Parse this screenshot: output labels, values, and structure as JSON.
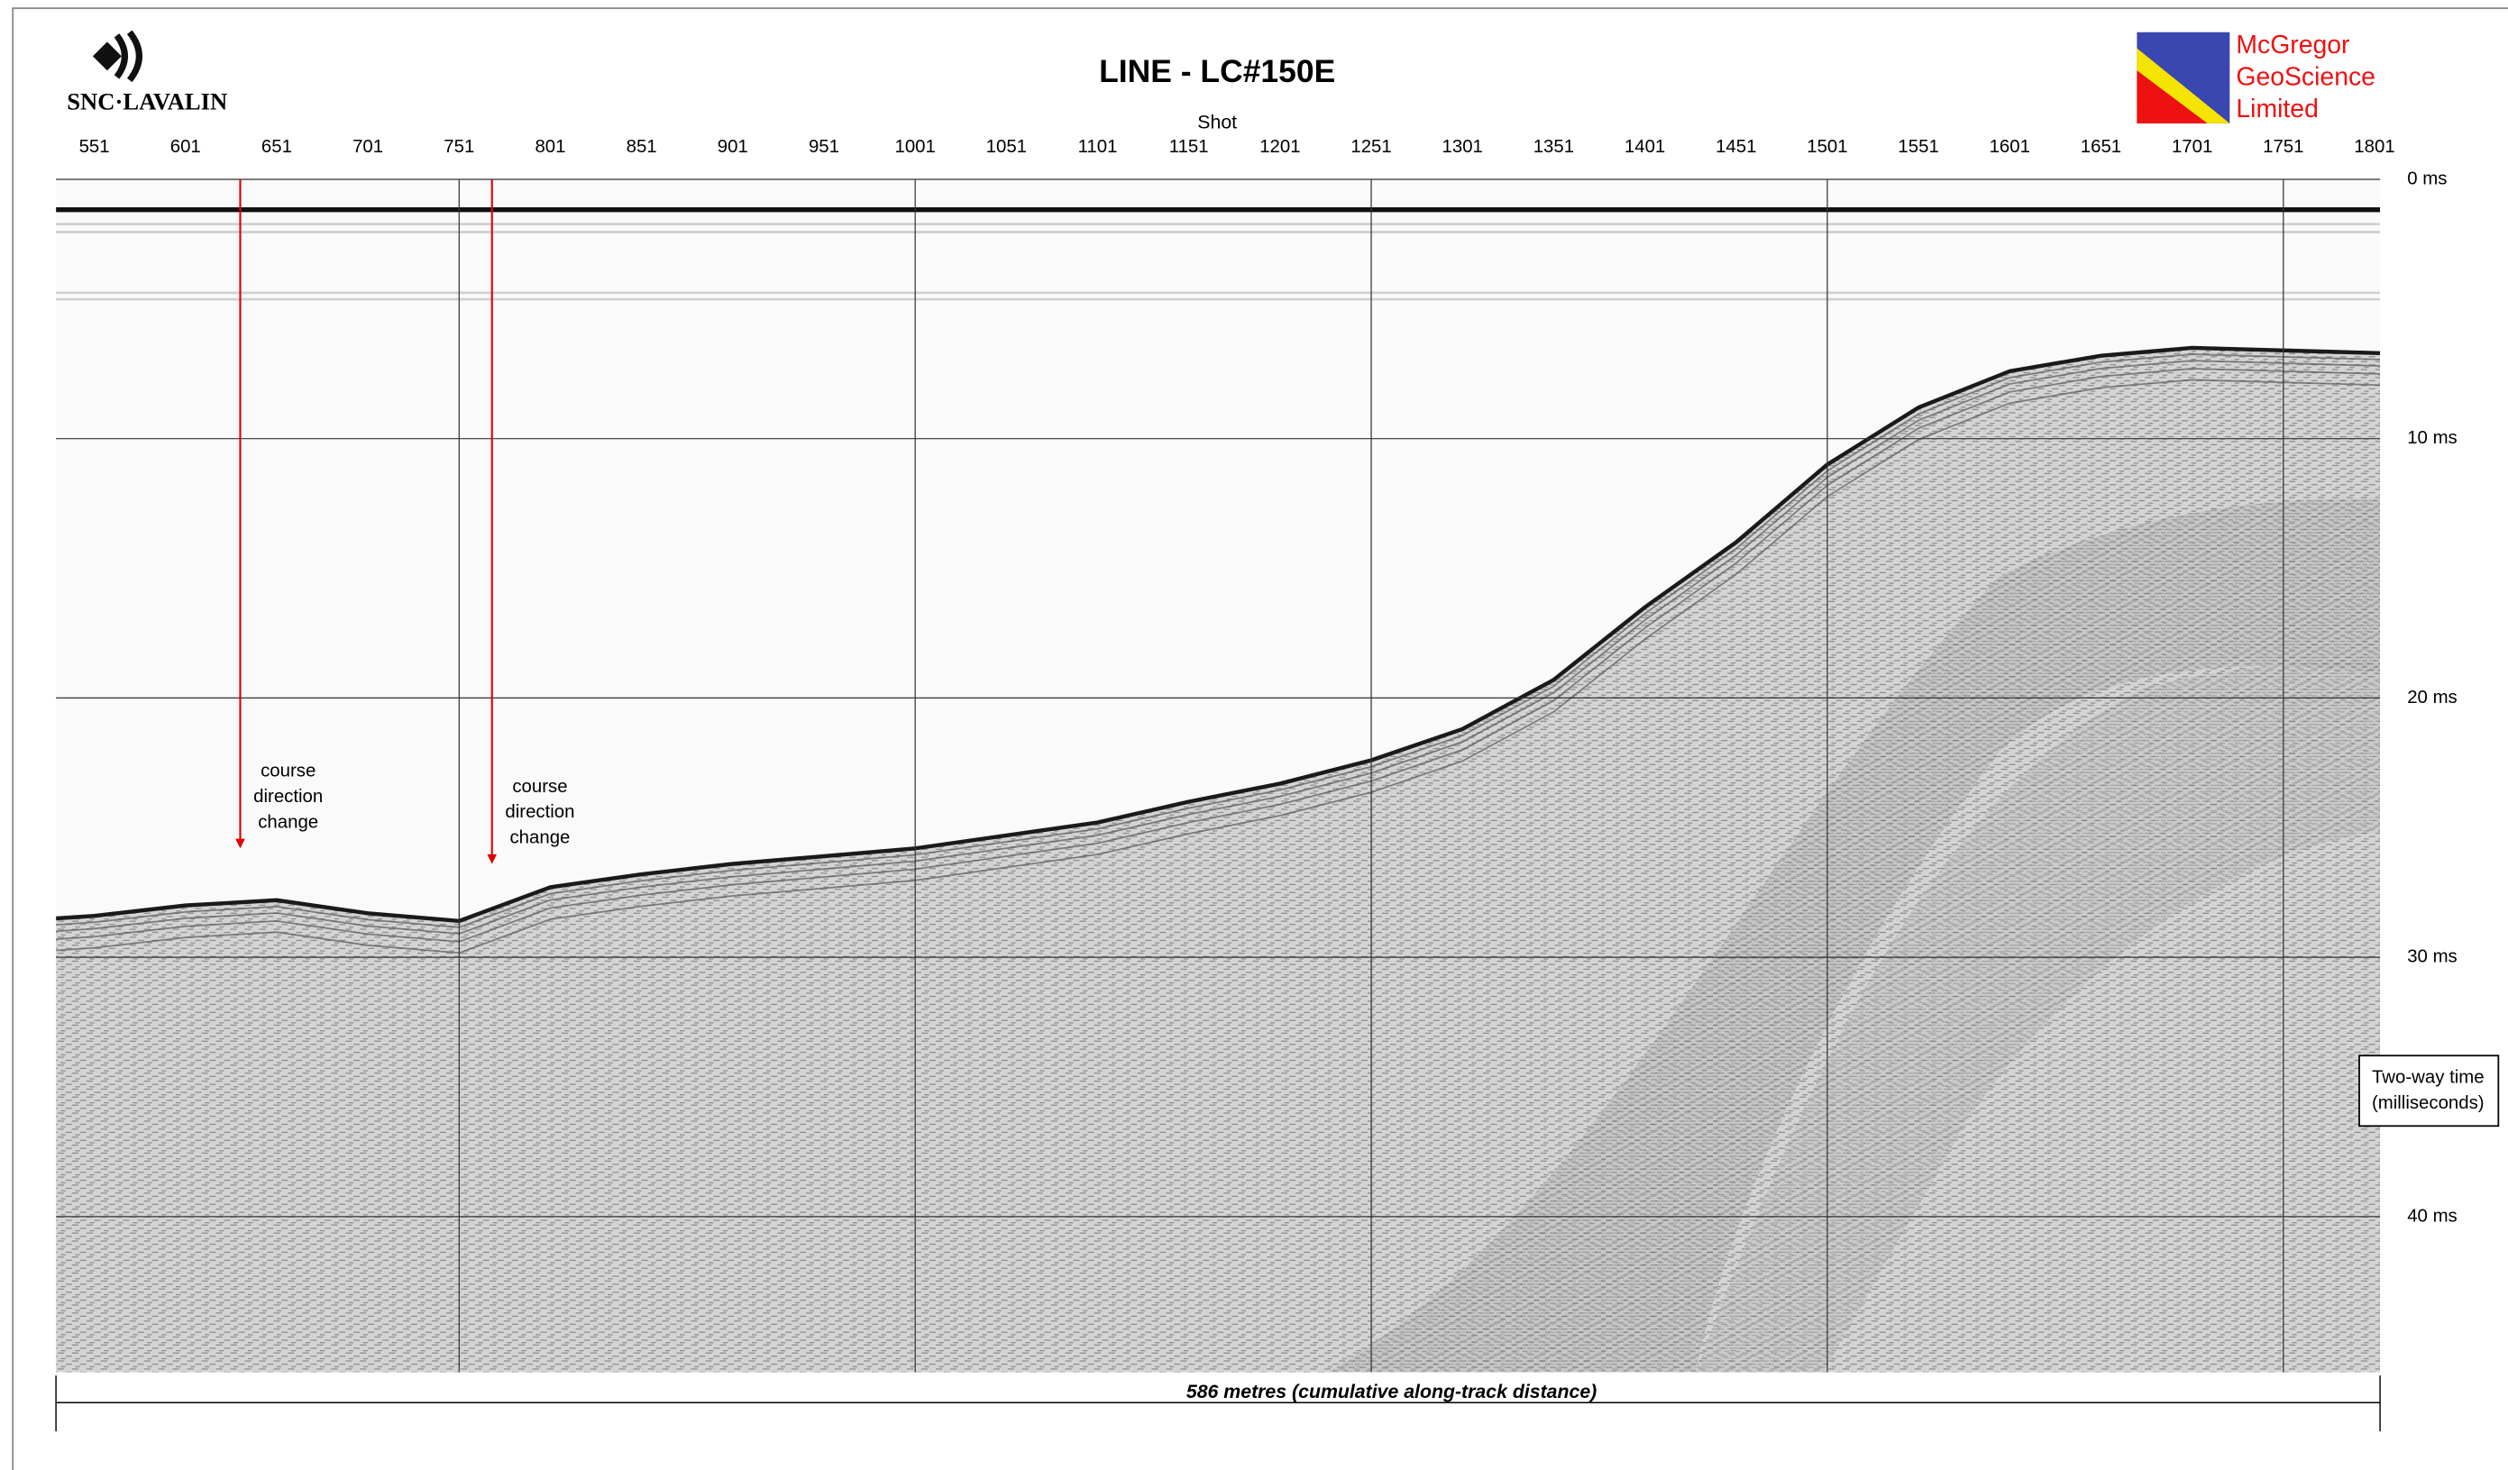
{
  "header": {
    "left_logo": "SNC·LAVALIN",
    "right_logo": [
      "McGregor",
      "GeoScience",
      "Limited"
    ]
  },
  "chart_data": {
    "type": "seismic",
    "title": "LINE - LC#150E",
    "x_label": "Shot",
    "y_label": [
      "Two-way time",
      "(milliseconds)"
    ],
    "footer": "586 metres (cumulative along-track distance)",
    "xlim": [
      530,
      1804
    ],
    "ylim": [
      0,
      46
    ],
    "y_inverted": true,
    "xticks": [
      551,
      601,
      651,
      701,
      751,
      801,
      851,
      901,
      951,
      1001,
      1051,
      1101,
      1151,
      1201,
      1251,
      1301,
      1351,
      1401,
      1451,
      1501,
      1551,
      1601,
      1651,
      1701,
      1751,
      1801
    ],
    "xgrid": [
      751,
      1001,
      1251,
      1501,
      1751
    ],
    "yticks": [
      {
        "value": 0,
        "label": "0 ms"
      },
      {
        "value": 10,
        "label": "10 ms"
      },
      {
        "value": 20,
        "label": "20 ms"
      },
      {
        "value": 30,
        "label": "30 ms"
      },
      {
        "value": 40,
        "label": "40 ms"
      }
    ],
    "grid": true,
    "color": "#1a1a1a",
    "x": [
      530,
      551,
      601,
      651,
      701,
      751,
      801,
      851,
      901,
      951,
      1001,
      1051,
      1101,
      1151,
      1201,
      1251,
      1301,
      1351,
      1401,
      1451,
      1501,
      1551,
      1601,
      1651,
      1701,
      1751,
      1804
    ],
    "values": [
      28.5,
      28.4,
      28.0,
      27.8,
      28.3,
      28.6,
      27.3,
      26.8,
      26.4,
      26.1,
      25.8,
      25.3,
      24.8,
      24.0,
      23.3,
      22.4,
      21.2,
      19.3,
      16.5,
      14.0,
      11.0,
      8.8,
      7.4,
      6.8,
      6.5,
      6.6,
      6.7
    ],
    "annotations": [
      {
        "x": 631,
        "y": 25.8,
        "color": "#e00000",
        "lines": [
          "course",
          "direction",
          "change"
        ]
      },
      {
        "x": 769,
        "y": 26.4,
        "color": "#e00000",
        "lines": [
          "course",
          "direction",
          "change"
        ]
      }
    ]
  }
}
